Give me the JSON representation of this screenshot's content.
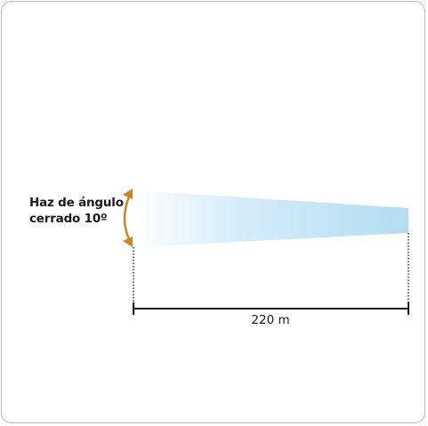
{
  "beam": {
    "label_line1": "Haz de ángulo",
    "label_line2": "cerrado 10º",
    "distance_label": "220 m"
  },
  "colors": {
    "beam_light": "#ffffff",
    "beam_dark": "#b3ddf2",
    "arrow": "#c8872a",
    "line": "#1a1a1a"
  }
}
